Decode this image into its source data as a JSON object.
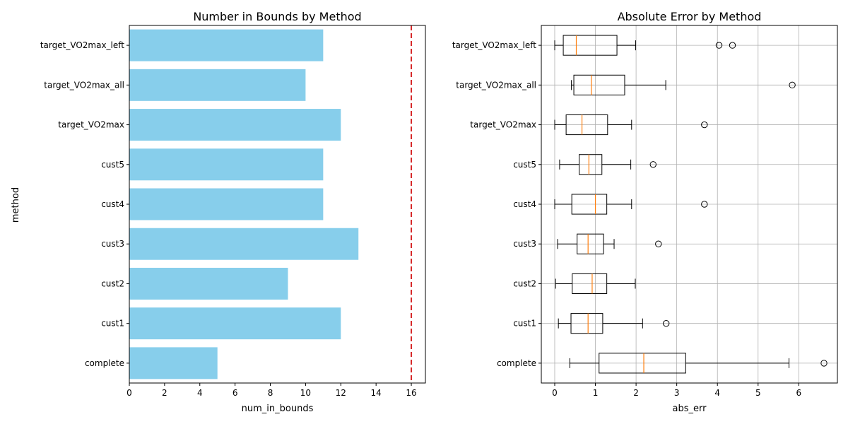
{
  "chart_data": [
    {
      "type": "bar",
      "orientation": "horizontal",
      "title": "Number in Bounds by Method",
      "xlabel": "num_in_bounds",
      "ylabel": "method",
      "categories": [
        "complete",
        "cust1",
        "cust2",
        "cust3",
        "cust4",
        "cust5",
        "target_VO2max",
        "target_VO2max_all",
        "target_VO2max_left"
      ],
      "values": [
        5,
        12,
        9,
        13,
        11,
        11,
        12,
        10,
        11
      ],
      "xlim": [
        0,
        16.8
      ],
      "xticks": [
        0,
        2,
        4,
        6,
        8,
        10,
        12,
        14,
        16
      ],
      "reference_line": {
        "x": 16,
        "style": "dashed",
        "color": "#d62728"
      },
      "bar_color": "#87ceeb",
      "grid": false
    },
    {
      "type": "box",
      "orientation": "horizontal",
      "title": "Absolute Error by Method",
      "xlabel": "abs_err",
      "ylabel": "",
      "categories": [
        "complete",
        "cust1",
        "cust2",
        "cust3",
        "cust4",
        "cust5",
        "target_VO2max",
        "target_VO2max_all",
        "target_VO2max_left"
      ],
      "boxes": [
        {
          "whisker_low": 0.37,
          "q1": 1.09,
          "median": 2.19,
          "q3": 3.22,
          "whisker_high": 5.76,
          "outliers": [
            6.62
          ]
        },
        {
          "whisker_low": 0.09,
          "q1": 0.4,
          "median": 0.82,
          "q3": 1.18,
          "whisker_high": 2.16,
          "outliers": [
            2.74
          ]
        },
        {
          "whisker_low": 0.02,
          "q1": 0.43,
          "median": 0.92,
          "q3": 1.28,
          "whisker_high": 1.98,
          "outliers": []
        },
        {
          "whisker_low": 0.07,
          "q1": 0.55,
          "median": 0.82,
          "q3": 1.2,
          "whisker_high": 1.46,
          "outliers": [
            2.55
          ]
        },
        {
          "whisker_low": 0.0,
          "q1": 0.42,
          "median": 1.0,
          "q3": 1.28,
          "whisker_high": 1.89,
          "outliers": [
            3.68
          ]
        },
        {
          "whisker_low": 0.12,
          "q1": 0.6,
          "median": 0.84,
          "q3": 1.16,
          "whisker_high": 1.87,
          "outliers": [
            2.42
          ]
        },
        {
          "whisker_low": 0.0,
          "q1": 0.28,
          "median": 0.67,
          "q3": 1.3,
          "whisker_high": 1.89,
          "outliers": [
            3.68
          ]
        },
        {
          "whisker_low": 0.41,
          "q1": 0.47,
          "median": 0.9,
          "q3": 1.72,
          "whisker_high": 2.73,
          "outliers": [
            5.84
          ]
        },
        {
          "whisker_low": 0.0,
          "q1": 0.21,
          "median": 0.53,
          "q3": 1.53,
          "whisker_high": 1.99,
          "outliers": [
            4.04,
            4.37
          ]
        }
      ],
      "xlim": [
        -0.33,
        6.95
      ],
      "xticks": [
        0,
        1,
        2,
        3,
        4,
        5,
        6
      ],
      "grid": true,
      "box_color": "#000000",
      "median_color": "#ff7f0e"
    }
  ]
}
